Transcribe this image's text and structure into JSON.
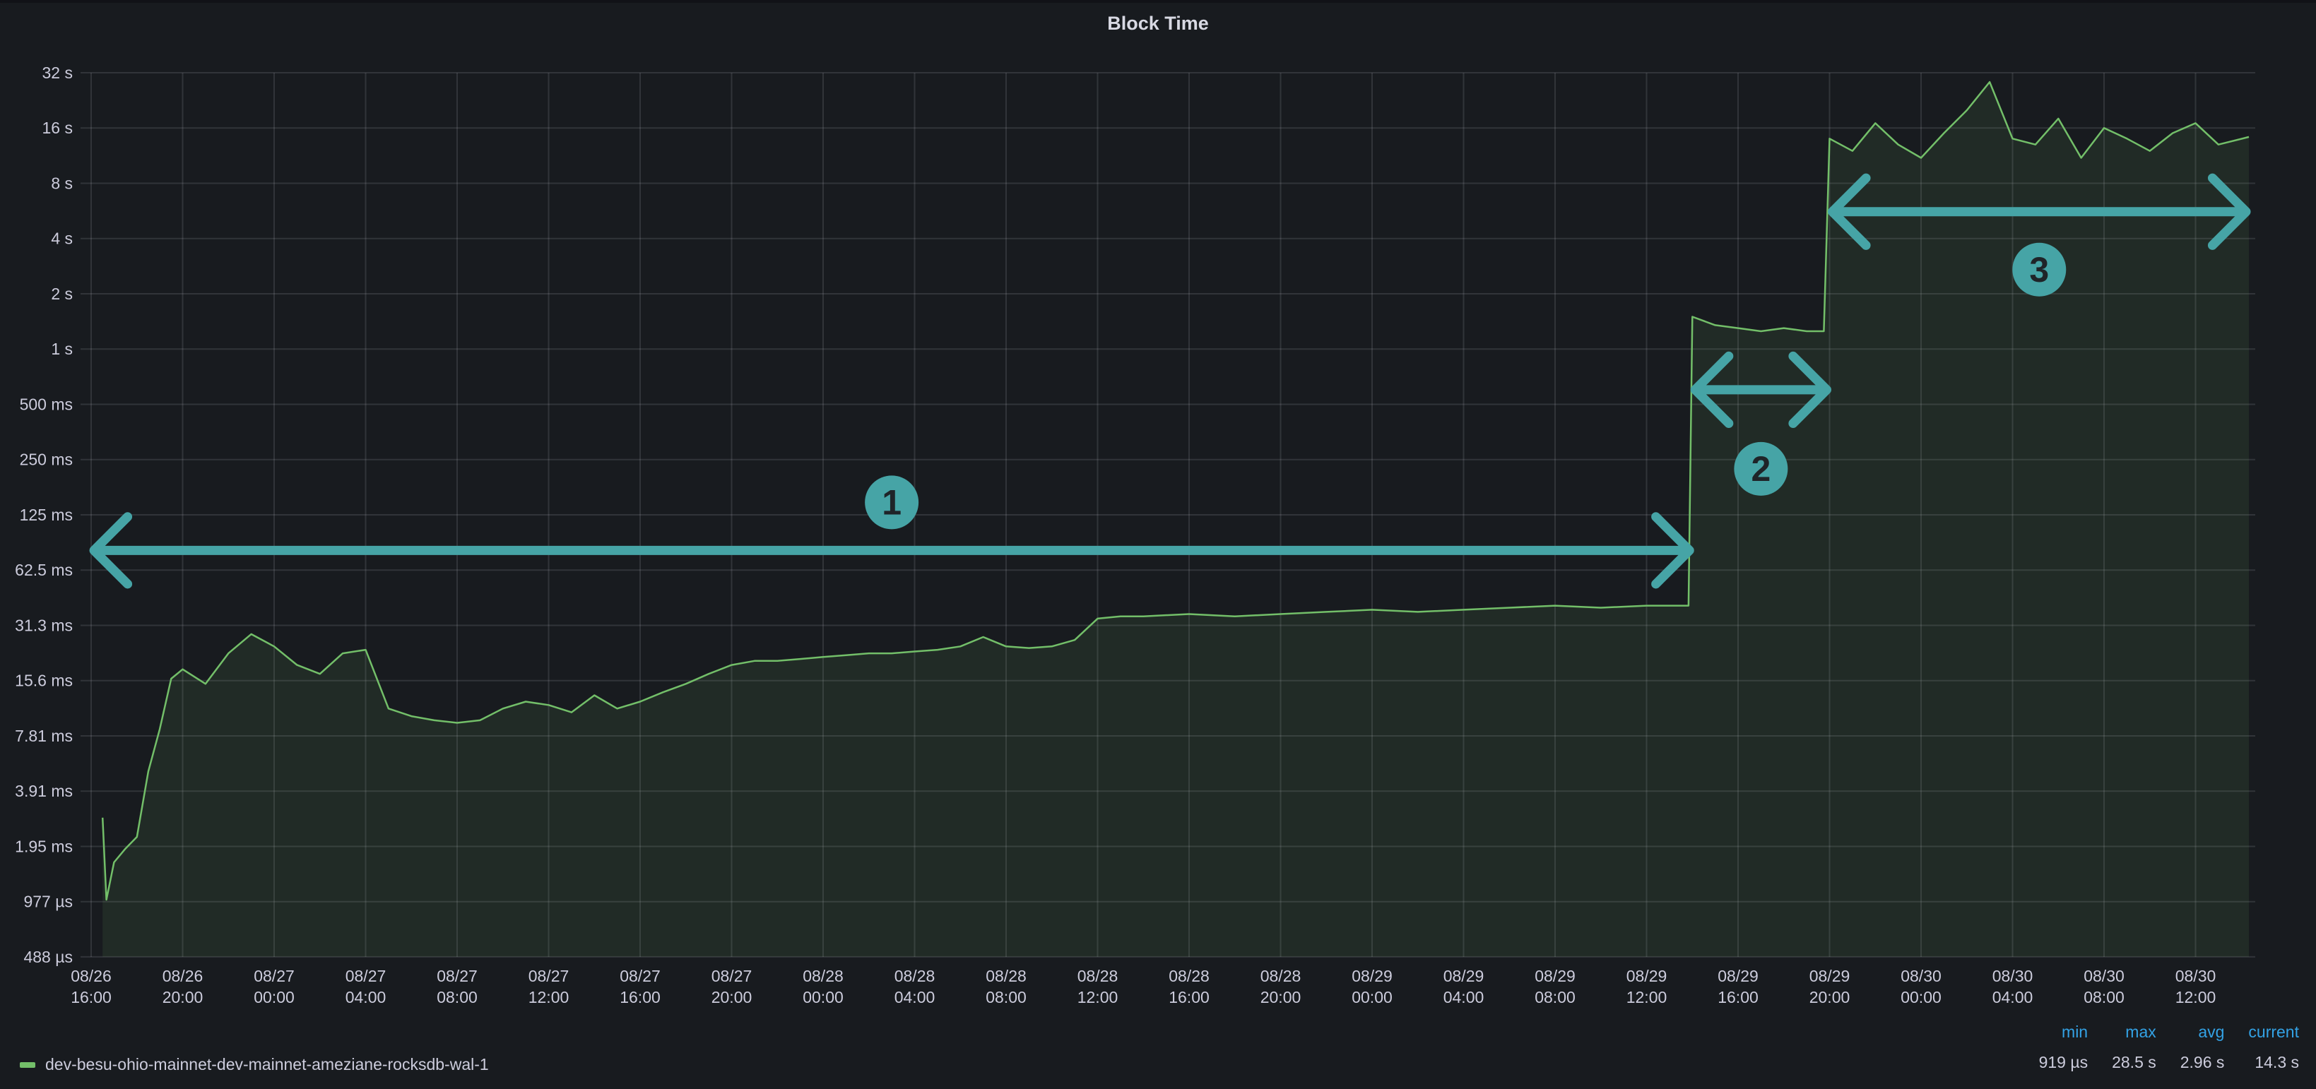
{
  "chart_data": {
    "type": "area",
    "title": "Block Time",
    "xlabel": "",
    "ylabel": "",
    "y_scale": "log2",
    "ylim_seconds": [
      0.000488,
      32
    ],
    "y_ticks": [
      {
        "v": 32,
        "label": "32 s"
      },
      {
        "v": 16,
        "label": "16 s"
      },
      {
        "v": 8,
        "label": "8 s"
      },
      {
        "v": 4,
        "label": "4 s"
      },
      {
        "v": 2,
        "label": "2 s"
      },
      {
        "v": 1,
        "label": "1 s"
      },
      {
        "v": 0.5,
        "label": "500 ms"
      },
      {
        "v": 0.25,
        "label": "250 ms"
      },
      {
        "v": 0.125,
        "label": "125 ms"
      },
      {
        "v": 0.0625,
        "label": "62.5 ms"
      },
      {
        "v": 0.03125,
        "label": "31.3 ms"
      },
      {
        "v": 0.015625,
        "label": "15.6 ms"
      },
      {
        "v": 0.0078125,
        "label": "7.81 ms"
      },
      {
        "v": 0.00390625,
        "label": "3.91 ms"
      },
      {
        "v": 0.001953125,
        "label": "1.95 ms"
      },
      {
        "v": 0.0009765625,
        "label": "977 µs"
      },
      {
        "v": 0.00048828125,
        "label": "488 µs"
      }
    ],
    "xlim": [
      "08/26 16:00",
      "08/30 14:20"
    ],
    "x_ticks": [
      [
        "08/26",
        "16:00"
      ],
      [
        "08/26",
        "20:00"
      ],
      [
        "08/27",
        "00:00"
      ],
      [
        "08/27",
        "04:00"
      ],
      [
        "08/27",
        "08:00"
      ],
      [
        "08/27",
        "12:00"
      ],
      [
        "08/27",
        "16:00"
      ],
      [
        "08/27",
        "20:00"
      ],
      [
        "08/28",
        "00:00"
      ],
      [
        "08/28",
        "04:00"
      ],
      [
        "08/28",
        "08:00"
      ],
      [
        "08/28",
        "12:00"
      ],
      [
        "08/28",
        "16:00"
      ],
      [
        "08/28",
        "20:00"
      ],
      [
        "08/29",
        "00:00"
      ],
      [
        "08/29",
        "04:00"
      ],
      [
        "08/29",
        "08:00"
      ],
      [
        "08/29",
        "12:00"
      ],
      [
        "08/29",
        "16:00"
      ],
      [
        "08/29",
        "20:00"
      ],
      [
        "08/30",
        "00:00"
      ],
      [
        "08/30",
        "04:00"
      ],
      [
        "08/30",
        "08:00"
      ],
      [
        "08/30",
        "12:00"
      ]
    ],
    "grid": true,
    "legend_placement": "bottom",
    "series": [
      {
        "name": "dev-besu-ohio-mainnet-dev-mainnet-ameziane-rocksdb-wal-1",
        "color": "#73bf69",
        "points": [
          [
            "08/26 16:30",
            0.0028
          ],
          [
            "08/26 16:40",
            0.001
          ],
          [
            "08/26 17:00",
            0.0016
          ],
          [
            "08/26 17:30",
            0.0019
          ],
          [
            "08/26 18:00",
            0.0022
          ],
          [
            "08/26 18:30",
            0.005
          ],
          [
            "08/26 19:00",
            0.0085
          ],
          [
            "08/26 19:30",
            0.016
          ],
          [
            "08/26 20:00",
            0.018
          ],
          [
            "08/26 21:00",
            0.015
          ],
          [
            "08/26 22:00",
            0.022
          ],
          [
            "08/26 23:00",
            0.028
          ],
          [
            "08/27 00:00",
            0.024
          ],
          [
            "08/27 01:00",
            0.019
          ],
          [
            "08/27 02:00",
            0.017
          ],
          [
            "08/27 03:00",
            0.022
          ],
          [
            "08/27 04:00",
            0.023
          ],
          [
            "08/27 05:00",
            0.011
          ],
          [
            "08/27 06:00",
            0.01
          ],
          [
            "08/27 07:00",
            0.0095
          ],
          [
            "08/27 08:00",
            0.0092
          ],
          [
            "08/27 09:00",
            0.0095
          ],
          [
            "08/27 10:00",
            0.011
          ],
          [
            "08/27 11:00",
            0.012
          ],
          [
            "08/27 12:00",
            0.0115
          ],
          [
            "08/27 13:00",
            0.0105
          ],
          [
            "08/27 14:00",
            0.013
          ],
          [
            "08/27 15:00",
            0.011
          ],
          [
            "08/27 16:00",
            0.012
          ],
          [
            "08/27 17:00",
            0.0135
          ],
          [
            "08/27 18:00",
            0.015
          ],
          [
            "08/27 19:00",
            0.017
          ],
          [
            "08/27 20:00",
            0.019
          ],
          [
            "08/27 21:00",
            0.02
          ],
          [
            "08/27 22:00",
            0.02
          ],
          [
            "08/27 23:00",
            0.0205
          ],
          [
            "08/28 00:00",
            0.021
          ],
          [
            "08/28 01:00",
            0.0215
          ],
          [
            "08/28 02:00",
            0.022
          ],
          [
            "08/28 03:00",
            0.022
          ],
          [
            "08/28 04:00",
            0.0225
          ],
          [
            "08/28 05:00",
            0.023
          ],
          [
            "08/28 06:00",
            0.024
          ],
          [
            "08/28 07:00",
            0.027
          ],
          [
            "08/28 08:00",
            0.024
          ],
          [
            "08/28 09:00",
            0.0235
          ],
          [
            "08/28 10:00",
            0.024
          ],
          [
            "08/28 11:00",
            0.026
          ],
          [
            "08/28 12:00",
            0.034
          ],
          [
            "08/28 13:00",
            0.035
          ],
          [
            "08/28 14:00",
            0.035
          ],
          [
            "08/28 16:00",
            0.036
          ],
          [
            "08/28 18:00",
            0.035
          ],
          [
            "08/28 20:00",
            0.036
          ],
          [
            "08/28 22:00",
            0.037
          ],
          [
            "08/29 00:00",
            0.038
          ],
          [
            "08/29 02:00",
            0.037
          ],
          [
            "08/29 04:00",
            0.038
          ],
          [
            "08/29 06:00",
            0.039
          ],
          [
            "08/29 08:00",
            0.04
          ],
          [
            "08/29 10:00",
            0.039
          ],
          [
            "08/29 12:00",
            0.04
          ],
          [
            "08/29 13:50",
            0.04
          ],
          [
            "08/29 14:00",
            1.5
          ],
          [
            "08/29 15:00",
            1.35
          ],
          [
            "08/29 16:00",
            1.3
          ],
          [
            "08/29 17:00",
            1.25
          ],
          [
            "08/29 18:00",
            1.3
          ],
          [
            "08/29 19:00",
            1.25
          ],
          [
            "08/29 19:45",
            1.25
          ],
          [
            "08/29 20:00",
            14
          ],
          [
            "08/29 21:00",
            12
          ],
          [
            "08/29 22:00",
            17
          ],
          [
            "08/29 23:00",
            13
          ],
          [
            "08/30 00:00",
            11
          ],
          [
            "08/30 01:00",
            15
          ],
          [
            "08/30 02:00",
            20
          ],
          [
            "08/30 03:00",
            28.5
          ],
          [
            "08/30 04:00",
            14
          ],
          [
            "08/30 05:00",
            13
          ],
          [
            "08/30 06:00",
            18
          ],
          [
            "08/30 07:00",
            11
          ],
          [
            "08/30 08:00",
            16
          ],
          [
            "08/30 09:00",
            14
          ],
          [
            "08/30 10:00",
            12
          ],
          [
            "08/30 11:00",
            15
          ],
          [
            "08/30 12:00",
            17
          ],
          [
            "08/30 13:00",
            13
          ],
          [
            "08/30 14:20",
            14.3
          ]
        ]
      }
    ],
    "annotations": [
      {
        "label": "1",
        "from": "08/26 16:00",
        "to": "08/29 14:00",
        "y": 0.08,
        "color": "#46a4a6"
      },
      {
        "label": "2",
        "from": "08/29 14:00",
        "to": "08/29 20:00",
        "y": 0.6,
        "color": "#46a4a6"
      },
      {
        "label": "3",
        "from": "08/29 20:00",
        "to": "08/30 14:20",
        "y": 5.6,
        "color": "#46a4a6"
      }
    ]
  },
  "legend": {
    "series_name": "dev-besu-ohio-mainnet-dev-mainnet-ameziane-rocksdb-wal-1",
    "headers": {
      "min": "min",
      "max": "max",
      "avg": "avg",
      "current": "current"
    },
    "values": {
      "min": "919 µs",
      "max": "28.5 s",
      "avg": "2.96 s",
      "current": "14.3 s"
    }
  }
}
